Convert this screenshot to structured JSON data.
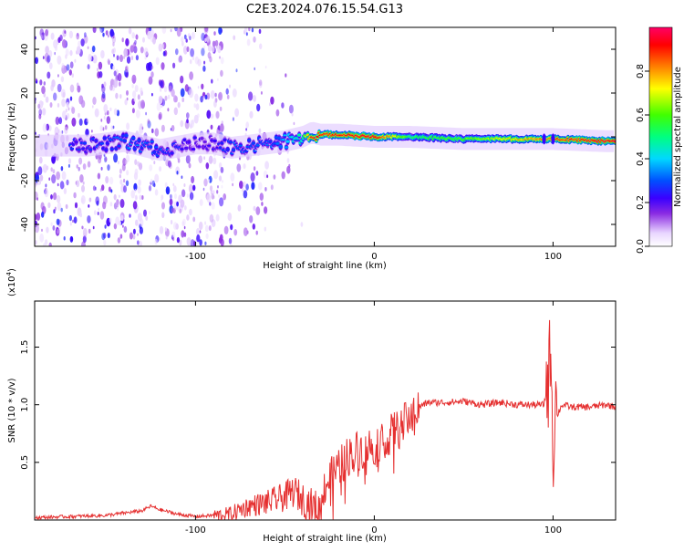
{
  "figure_title": "C2E3.2024.076.15.54.G13",
  "chart_data": [
    {
      "type": "heatmap",
      "title": "",
      "xlabel": "Height of straight line (km)",
      "ylabel": "Frequency (Hz)",
      "xlim": [
        -190,
        135
      ],
      "ylim": [
        -50,
        50
      ],
      "x_ticks": [
        -100,
        0,
        100
      ],
      "y_ticks": [
        -40,
        -20,
        0,
        20,
        40
      ],
      "colorbar": {
        "label": "Normalized spectral amplitude",
        "range": [
          0,
          1
        ],
        "ticks": [
          "0.0",
          "0.2",
          "0.4",
          "0.6",
          "0.8"
        ],
        "colors": [
          "#ffffff",
          "#e9d6ff",
          "#8a2be2",
          "#3a00ff",
          "#0050ff",
          "#00d8ff",
          "#00ff80",
          "#40ff00",
          "#ffff00",
          "#ff8000",
          "#ff0000",
          "#ff0066"
        ]
      },
      "ridge": {
        "description_points_x": [
          -160,
          -140,
          -120,
          -100,
          -90,
          -80,
          -70,
          -60,
          -50,
          -40,
          -35,
          -30,
          -20,
          0,
          20,
          50,
          80,
          100,
          130
        ],
        "frequency_hz": [
          -4,
          -2,
          -6,
          -3,
          -3,
          -5,
          -4,
          -3,
          -2,
          0,
          2,
          1,
          1,
          0,
          0,
          -1,
          -1,
          -1,
          -2
        ],
        "amplitude": [
          0.25,
          0.3,
          0.3,
          0.2,
          0.2,
          0.3,
          0.3,
          0.3,
          0.35,
          0.5,
          0.9,
          0.9,
          0.9,
          0.95,
          0.55,
          0.6,
          0.75,
          0.85,
          0.95
        ]
      }
    },
    {
      "type": "line",
      "title": "",
      "xlabel": "Height of straight line (km)",
      "ylabel": "SNR (10 * v/v)",
      "y_multiplier": "(x10",
      "y_multiplier_exp": "4",
      "xlim": [
        -190,
        135
      ],
      "ylim": [
        0,
        1.9
      ],
      "x_ticks": [
        -100,
        0,
        100
      ],
      "y_ticks": [
        "0.5",
        "1.0",
        "1.5"
      ],
      "line_color": "#e53030",
      "series": [
        {
          "x": [
            -190,
            -170,
            -150,
            -140,
            -130,
            -125,
            -120,
            -110,
            -100,
            -90,
            -80,
            -75,
            -70,
            -60,
            -50,
            -45,
            -40,
            -35,
            -30,
            -28,
            -25,
            -20,
            -15,
            -10,
            -5,
            0,
            5,
            10,
            15,
            20,
            25,
            30,
            40,
            50,
            60,
            70,
            80,
            90,
            95,
            98,
            99,
            100,
            101,
            102,
            105,
            110,
            120,
            130,
            135
          ],
          "y": [
            0.02,
            0.03,
            0.04,
            0.06,
            0.08,
            0.12,
            0.09,
            0.05,
            0.03,
            0.04,
            0.05,
            0.09,
            0.12,
            0.15,
            0.2,
            0.25,
            0.18,
            0.12,
            0.08,
            0.3,
            0.35,
            0.45,
            0.55,
            0.6,
            0.62,
            0.65,
            0.7,
            0.75,
            0.8,
            0.9,
            0.98,
            1.02,
            1.02,
            1.03,
            1.0,
            1.02,
            1.0,
            1.0,
            1.0,
            1.3,
            1.7,
            0.25,
            1.2,
            0.9,
            1.0,
            0.98,
            0.98,
            1.0,
            0.98
          ]
        }
      ]
    }
  ]
}
